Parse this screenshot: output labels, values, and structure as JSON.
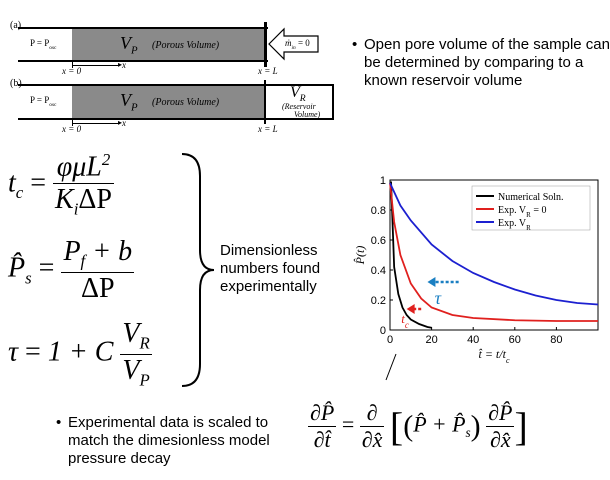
{
  "diagram_a": {
    "label": "(a)",
    "left_cond": "P = P",
    "left_cond_sub": "osc",
    "porous_symbol": "V",
    "porous_sub": "P",
    "porous_desc": "(Porous Volume)",
    "inflow": "ṁ",
    "inflow_sub": "in",
    "inflow_eq": " = 0",
    "x_start": "x = 0",
    "x_axis": "x",
    "x_end": "x = L"
  },
  "diagram_b": {
    "label": "(b)",
    "left_cond": "P = P",
    "left_cond_sub": "osc",
    "porous_symbol": "V",
    "porous_sub": "P",
    "porous_desc": "(Porous Volume)",
    "reservoir_symbol": "V",
    "reservoir_sub": "R",
    "reservoir_desc_1": "(Reservoir",
    "reservoir_desc_2": "Volume)",
    "x_start": "x = 0",
    "x_axis": "x",
    "x_end": "x = L"
  },
  "bullets": {
    "top": "Open pore volume of the sample can be determined by comparing to a known reservoir volume",
    "bottom": "Experimental data is scaled to match the dimesionless model pressure decay"
  },
  "equations": {
    "tc_lhs": "t",
    "tc_lhs_sub": "c",
    "tc_num": "φμL",
    "tc_num_sup": "2",
    "tc_den": "K",
    "tc_den_sub": "i",
    "tc_den_rest": "ΔP",
    "ps_lhs": "P̂",
    "ps_lhs_sub": "s",
    "ps_num": "P",
    "ps_num_sub": "f",
    "ps_num_rest": " + b",
    "ps_den": "ΔP",
    "tau_lhs": "τ",
    "tau_rhs": "1 + C",
    "tau_num": "V",
    "tau_num_sub": "R",
    "tau_den": "V",
    "tau_den_sub": "P",
    "equals": "="
  },
  "brace_label": "Dimensionless numbers found experimentally",
  "pde": {
    "lhs_num": "∂P̂",
    "lhs_den": "∂t̂",
    "equals": "=",
    "op_num": "∂",
    "op_den": "∂x̂",
    "inner": "P̂ + P̂",
    "inner_sub": "s",
    "d_num": "∂P̂",
    "d_den": "∂x̂"
  },
  "chart_data": {
    "type": "line",
    "xlabel": "t̂ = t/t",
    "xlabel_sub": "c",
    "ylabel": "P̂(t)",
    "xlim": [
      0,
      100
    ],
    "ylim": [
      0,
      1
    ],
    "xticks": [
      "0",
      "20",
      "40",
      "60",
      "80"
    ],
    "yticks": [
      "0",
      "0.2",
      "0.4",
      "0.6",
      "0.8",
      "1"
    ],
    "legend_position": "top-right",
    "grid": false,
    "series": [
      {
        "name": "Numerical Soln.",
        "color": "#000000",
        "x": [
          0.5,
          2,
          4,
          6,
          8,
          10,
          14,
          18,
          20
        ],
        "y": [
          0.99,
          0.42,
          0.24,
          0.15,
          0.1,
          0.07,
          0.04,
          0.02,
          0.015
        ]
      },
      {
        "name": "Exp. V",
        "name_sub": "R",
        "name_rest": " = 0",
        "color": "#e0201e",
        "x": [
          0,
          2,
          5,
          10,
          15,
          20,
          30,
          40,
          60,
          80,
          100
        ],
        "y": [
          0.98,
          0.72,
          0.5,
          0.31,
          0.21,
          0.15,
          0.1,
          0.08,
          0.065,
          0.06,
          0.06
        ]
      },
      {
        "name": "Exp. V",
        "name_sub": "R",
        "name_rest": "",
        "color": "#1c20d0",
        "x": [
          0,
          5,
          10,
          20,
          30,
          40,
          50,
          60,
          70,
          80,
          90,
          100
        ],
        "y": [
          0.98,
          0.83,
          0.73,
          0.57,
          0.46,
          0.38,
          0.32,
          0.27,
          0.23,
          0.2,
          0.18,
          0.17
        ]
      }
    ],
    "annotations": [
      {
        "text": "τ",
        "color": "#1a7fc2",
        "arrow_x_start": 33,
        "arrow_x_end": 18,
        "y": 0.32
      },
      {
        "text": "t",
        "sub": "c",
        "color": "#e0201e",
        "arrow_x_start": 15,
        "arrow_x_end": 8,
        "y": 0.14
      }
    ]
  }
}
